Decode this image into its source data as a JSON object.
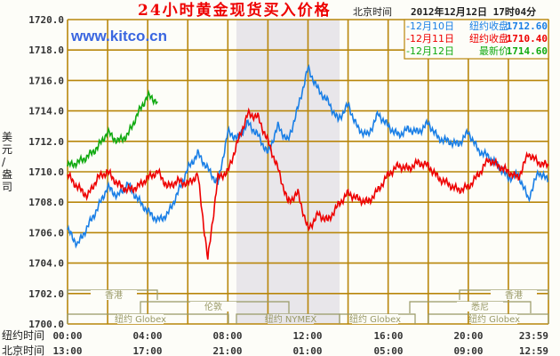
{
  "header": {
    "title": "24小时黄金现货买入价格",
    "timezone_label": "北京时间",
    "datetime": "2012年12月12日 17时04分",
    "watermark": "www.kitco.cn"
  },
  "legend": [
    {
      "date": "-12月10日",
      "label": "纽约收盘",
      "value": "1712.60",
      "color": "#1a7fe6"
    },
    {
      "date": "-12月11日",
      "label": "纽约收盘",
      "value": "1710.40",
      "color": "#ee0000"
    },
    {
      "date": "-12月12日",
      "label": "最新价",
      "value": "1714.60",
      "color": "#11aa11"
    }
  ],
  "y_axis": {
    "label": "美元/盎司",
    "ticks": [
      "1720.0",
      "1718.0",
      "1716.0",
      "1714.0",
      "1712.0",
      "1710.0",
      "1708.0",
      "1706.0",
      "1704.0",
      "1702.0",
      "1700.0"
    ]
  },
  "x_axis": {
    "ny_label": "纽约时间",
    "bj_label": "北京时间",
    "ny_ticks": [
      "00:00",
      "04:00",
      "08:00",
      "12:00",
      "16:00",
      "20:00",
      "23:59"
    ],
    "bj_ticks": [
      "13:00",
      "17:00",
      "21:00",
      "01:00",
      "05:00",
      "09:00",
      "12:59"
    ]
  },
  "sessions": [
    {
      "name": "香港",
      "row": 1
    },
    {
      "name": "伦敦",
      "row": 2
    },
    {
      "name": "纽约 Globex",
      "row": 3
    },
    {
      "name": "纽约 NYMEX",
      "row": 3
    },
    {
      "name": "纽约 Globex",
      "row": 3
    },
    {
      "name": "香港",
      "row": 1
    },
    {
      "name": "悉尼",
      "row": 2
    },
    {
      "name": "纽约 Globex",
      "row": 3
    }
  ],
  "colors": {
    "grid": "#b8860b",
    "shade": "#e8e6ea",
    "session_line": "#999966",
    "title": "#ee0000",
    "watermark": "#3a66e0"
  },
  "chart_data": {
    "type": "line",
    "title": "24小时黄金现货买入价格",
    "xlabel": "纽约时间 / 北京时间",
    "ylabel": "美元/盎司",
    "ylim": [
      1700,
      1720
    ],
    "xlim_hours_ny": [
      0,
      24
    ],
    "grid": true,
    "legend_position": "top-right",
    "x_hours": [
      0,
      0.5,
      1,
      1.5,
      2,
      2.5,
      3,
      3.5,
      4,
      4.5,
      5,
      5.5,
      6,
      6.5,
      7,
      7.5,
      8,
      8.5,
      9,
      9.5,
      10,
      10.5,
      11,
      11.5,
      12,
      12.5,
      13,
      13.5,
      14,
      14.5,
      15,
      15.5,
      16,
      16.5,
      17,
      17.5,
      18,
      18.5,
      19,
      19.5,
      20,
      20.5,
      21,
      21.5,
      22,
      22.5,
      23,
      23.5,
      24
    ],
    "series": [
      {
        "name": "12月10日 纽约收盘 1712.60",
        "color": "#1a7fe6",
        "values": [
          1706.2,
          1705.2,
          1706.4,
          1707.6,
          1709.0,
          1708.4,
          1709.2,
          1708.2,
          1707.4,
          1706.8,
          1707.2,
          1708.6,
          1710.2,
          1711.2,
          1710.2,
          1709.2,
          1712.6,
          1712.2,
          1713.2,
          1712.4,
          1711.2,
          1713.0,
          1712.0,
          1714.2,
          1716.8,
          1715.4,
          1714.6,
          1713.4,
          1714.4,
          1712.8,
          1712.4,
          1713.8,
          1713.0,
          1712.4,
          1712.8,
          1712.6,
          1713.2,
          1712.2,
          1712.0,
          1711.8,
          1712.6,
          1711.4,
          1711.0,
          1710.4,
          1709.6,
          1709.8,
          1708.2,
          1710.0,
          1709.4
        ]
      },
      {
        "name": "12月11日 纽约收盘 1710.40",
        "color": "#ee0000",
        "values": [
          1709.8,
          1709.0,
          1708.4,
          1709.6,
          1710.0,
          1709.2,
          1708.8,
          1709.0,
          1709.6,
          1710.0,
          1709.0,
          1709.4,
          1709.2,
          1709.8,
          1704.2,
          1709.6,
          1710.0,
          1712.0,
          1713.8,
          1713.6,
          1712.0,
          1710.2,
          1708.0,
          1708.6,
          1706.2,
          1707.2,
          1706.8,
          1707.8,
          1708.6,
          1708.2,
          1708.0,
          1708.8,
          1709.8,
          1710.4,
          1710.2,
          1710.6,
          1710.4,
          1709.6,
          1709.2,
          1708.8,
          1709.0,
          1709.8,
          1710.8,
          1710.4,
          1710.0,
          1709.6,
          1711.2,
          1710.6,
          1710.4
        ]
      },
      {
        "name": "12月12日 最新价 1714.60",
        "color": "#11aa11",
        "values": [
          1710.4,
          1710.6,
          1711.0,
          1711.6,
          1712.6,
          1712.0,
          1712.4,
          1713.8,
          1715.0,
          1714.6
        ]
      }
    ],
    "annotations": [
      "www.kitco.cn",
      "北京时间 2012年12月12日 17时04分"
    ],
    "shaded_region_hours_ny": [
      8.2,
      13.3
    ]
  }
}
